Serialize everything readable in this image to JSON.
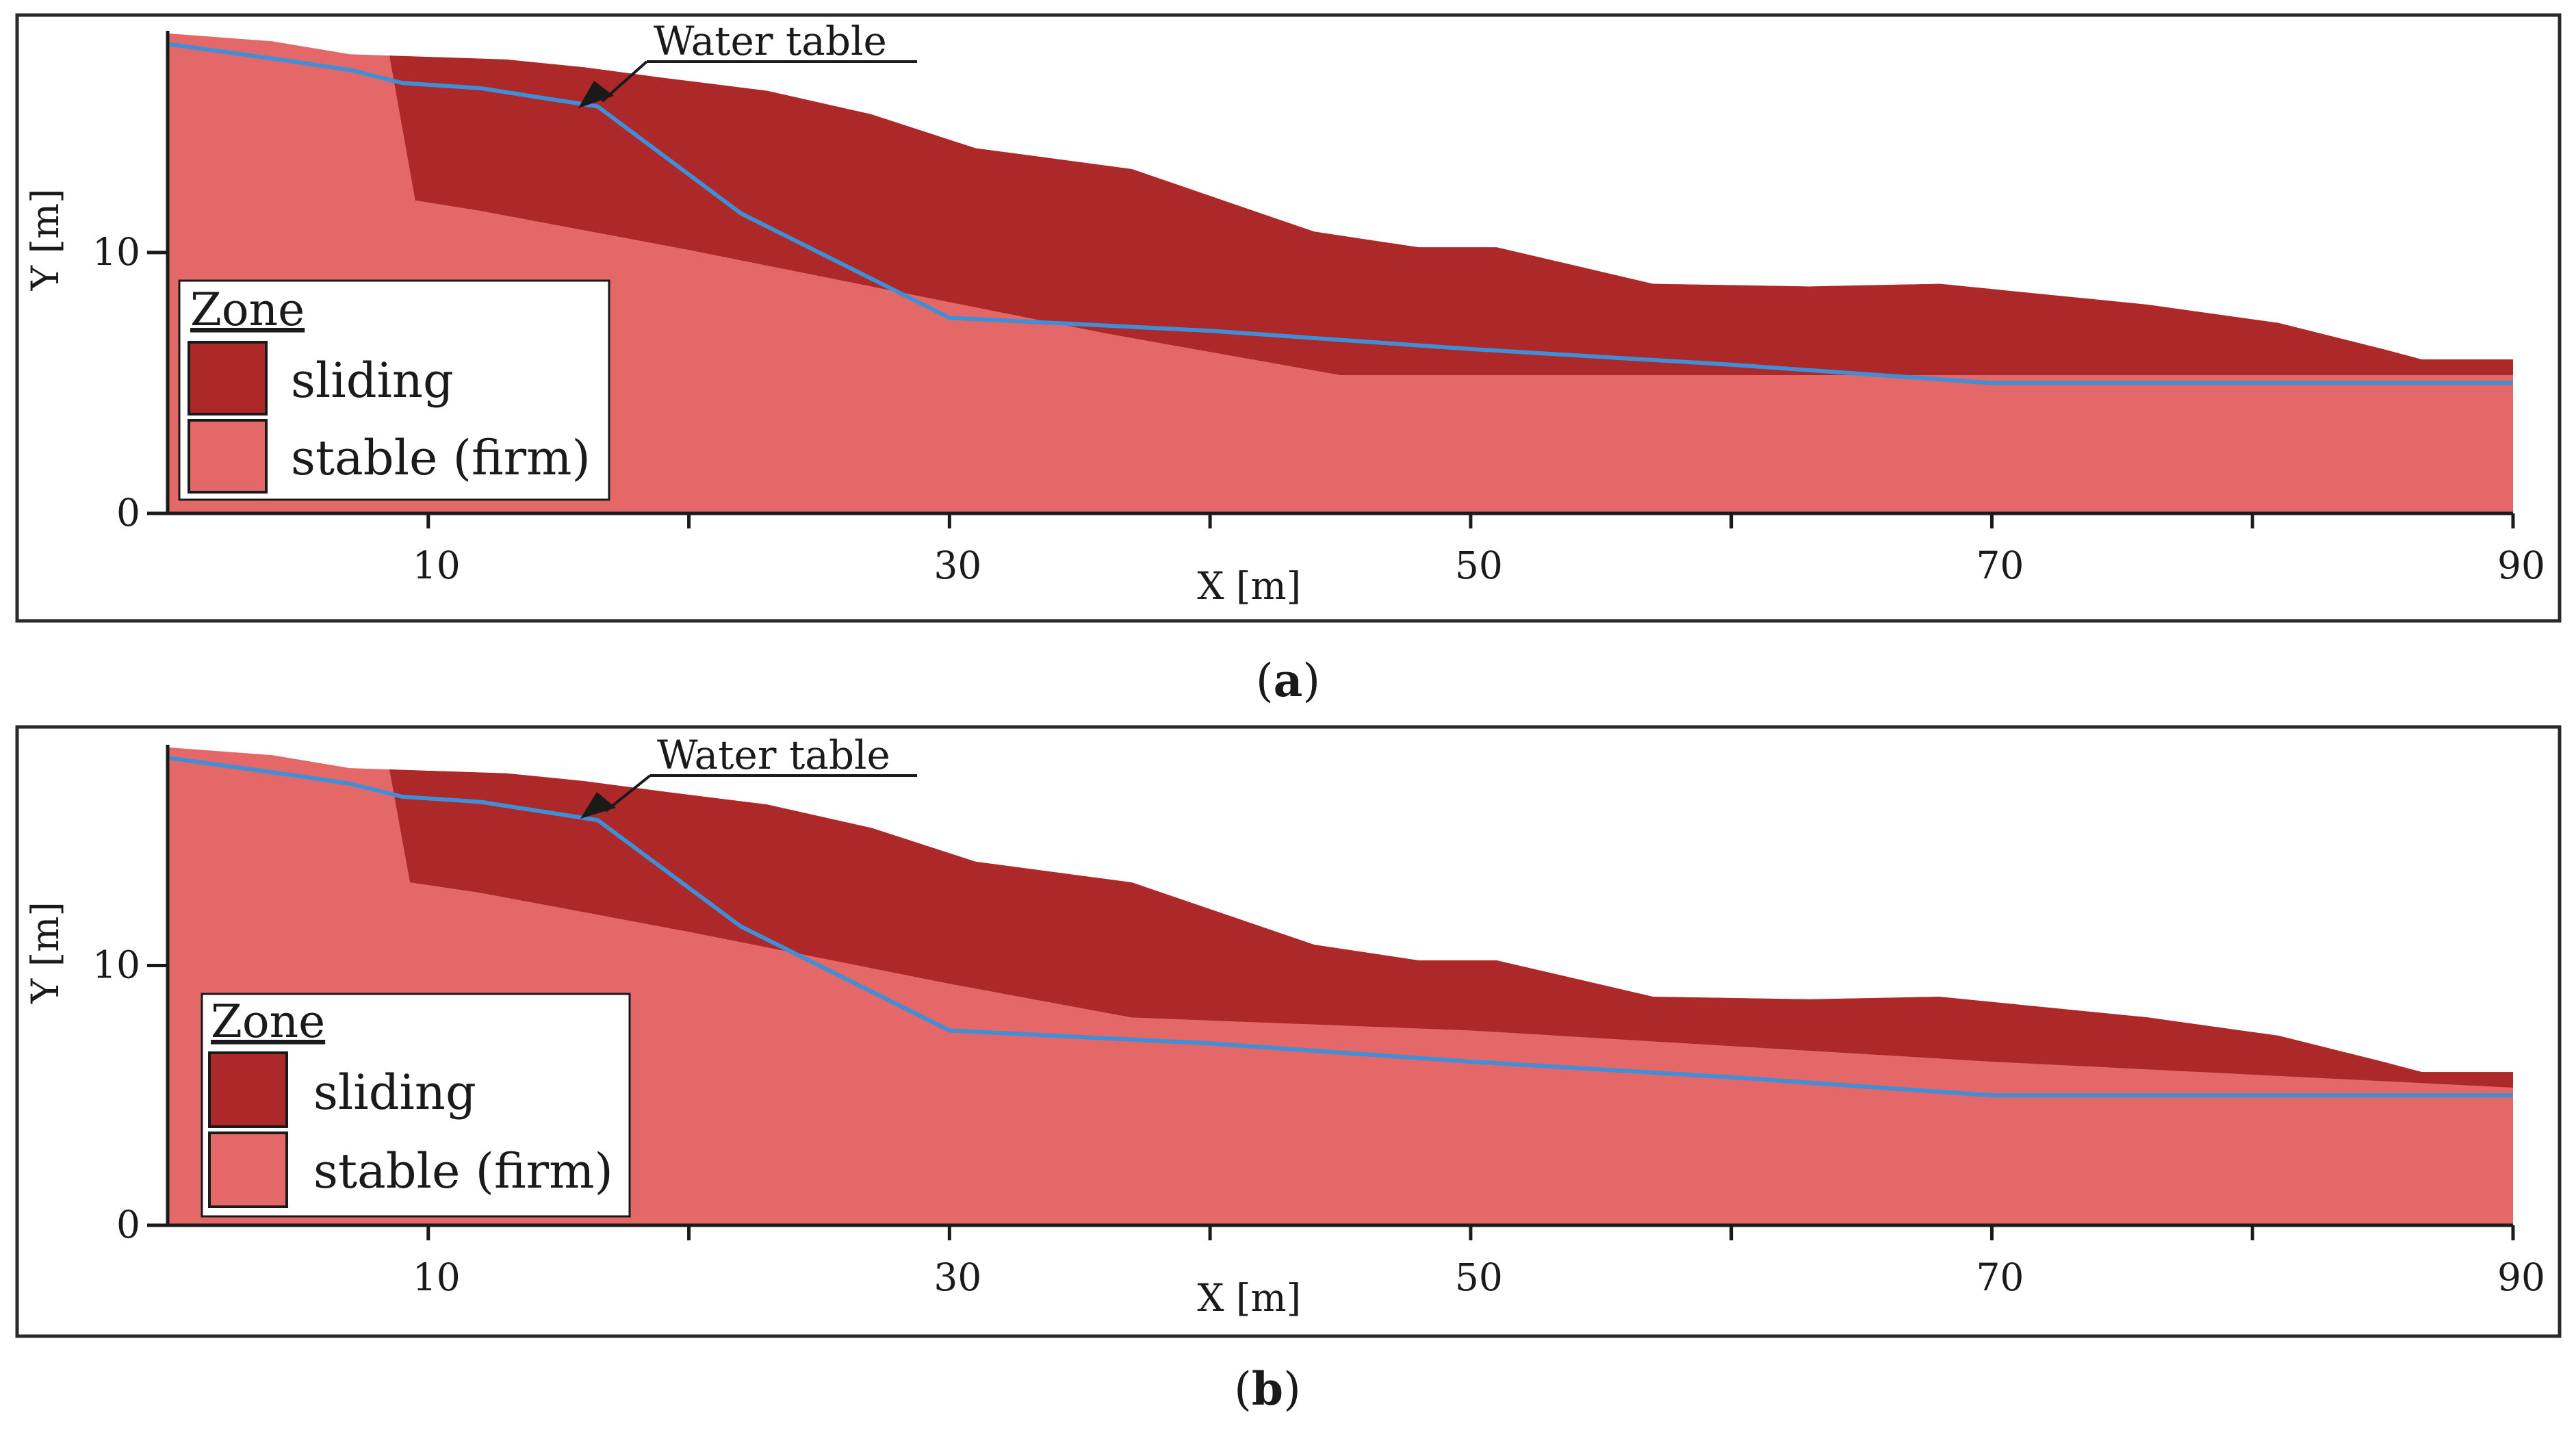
{
  "chart_data": [
    {
      "type": "area",
      "panel_label": "a",
      "xlabel": "X [m]",
      "ylabel": "Y [m]",
      "xlim": [
        0,
        90
      ],
      "ylim": [
        0,
        18.5
      ],
      "x_ticks": [
        10,
        30,
        50,
        70,
        90
      ],
      "x_minor_ticks": [
        20,
        40,
        60,
        80
      ],
      "y_ticks": [
        0,
        10
      ],
      "annotation": "Water table",
      "legend": {
        "title": "Zone",
        "entries": [
          {
            "label": "sliding",
            "color": "#ad2828"
          },
          {
            "label": "stable (firm)",
            "color": "#e46868"
          }
        ]
      },
      "series": [
        {
          "name": "ground surface",
          "x": [
            0,
            4,
            7,
            10,
            13,
            16,
            19,
            23,
            27,
            31,
            37,
            44,
            48,
            51,
            57,
            63,
            68,
            76,
            81,
            85,
            86.5,
            90
          ],
          "y": [
            18.4,
            18.1,
            17.6,
            17.5,
            17.4,
            17.1,
            16.7,
            16.2,
            15.3,
            14.0,
            13.2,
            10.8,
            10.2,
            10.2,
            8.8,
            8.7,
            8.8,
            8.0,
            7.3,
            6.3,
            5.9,
            5.9
          ]
        },
        {
          "name": "sliding zone base",
          "x": [
            8.5,
            9.5,
            12,
            20,
            28,
            36,
            45,
            55,
            70,
            90
          ],
          "y": [
            17.6,
            12.0,
            11.6,
            10.1,
            8.5,
            6.9,
            5.3,
            5.3,
            5.3,
            5.3
          ]
        },
        {
          "name": "water table",
          "x": [
            0,
            5,
            7,
            9,
            12,
            16.5,
            22,
            26,
            30,
            40,
            50,
            60,
            70,
            80,
            90
          ],
          "y": [
            18.0,
            17.3,
            17.0,
            16.5,
            16.3,
            15.6,
            11.5,
            9.5,
            7.5,
            7.0,
            6.3,
            5.7,
            5.0,
            5.0,
            5.0
          ]
        }
      ]
    },
    {
      "type": "area",
      "panel_label": "b",
      "xlabel": "X [m]",
      "ylabel": "Y [m]",
      "xlim": [
        0,
        90
      ],
      "ylim": [
        0,
        18.5
      ],
      "x_ticks": [
        10,
        30,
        50,
        70,
        90
      ],
      "x_minor_ticks": [
        20,
        40,
        60,
        80
      ],
      "y_ticks": [
        0,
        10
      ],
      "annotation": "Water table",
      "legend": {
        "title": "Zone",
        "entries": [
          {
            "label": "sliding",
            "color": "#ad2828"
          },
          {
            "label": "stable (firm)",
            "color": "#e46868"
          }
        ]
      },
      "series": [
        {
          "name": "ground surface",
          "x": [
            0,
            4,
            7,
            10,
            13,
            16,
            19,
            23,
            27,
            31,
            37,
            44,
            48,
            51,
            57,
            63,
            68,
            76,
            81,
            85,
            86.5,
            90
          ],
          "y": [
            18.4,
            18.1,
            17.6,
            17.5,
            17.4,
            17.1,
            16.7,
            16.2,
            15.3,
            14.0,
            13.2,
            10.8,
            10.2,
            10.2,
            8.8,
            8.7,
            8.8,
            8.0,
            7.3,
            6.3,
            5.9,
            5.9
          ]
        },
        {
          "name": "sliding zone base",
          "x": [
            8.5,
            9.3,
            12,
            20,
            30,
            37,
            50,
            60,
            70,
            80,
            90
          ],
          "y": [
            17.6,
            13.2,
            12.8,
            11.3,
            9.3,
            8.0,
            7.5,
            6.9,
            6.3,
            5.8,
            5.3
          ]
        },
        {
          "name": "water table",
          "x": [
            0,
            5,
            7,
            9,
            12,
            16.5,
            22,
            26,
            30,
            40,
            50,
            60,
            70,
            80,
            90
          ],
          "y": [
            18.0,
            17.3,
            17.0,
            16.5,
            16.3,
            15.6,
            11.5,
            9.5,
            7.5,
            7.0,
            6.3,
            5.7,
            5.0,
            5.0,
            5.0
          ]
        }
      ]
    }
  ]
}
